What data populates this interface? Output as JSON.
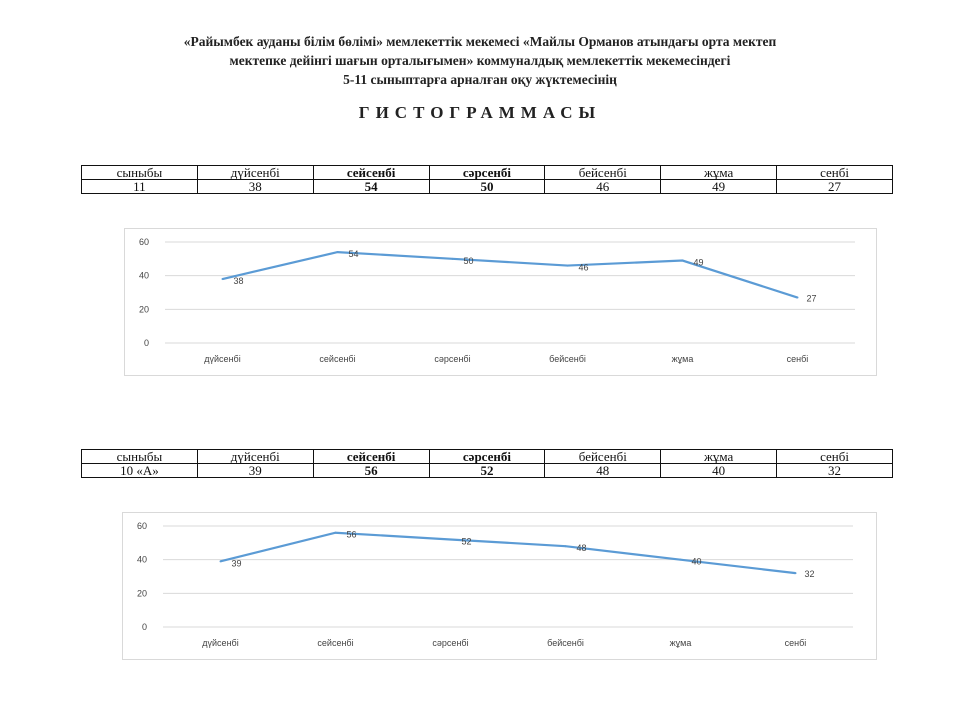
{
  "header": {
    "line1": "«Райымбек ауданы білім бөлімі» мемлекеттік мекемесі «Майлы Орманов атындағы орта мектеп",
    "line2": "мектепке дейінгі шағын орталығымен» коммуналдық мемлекеттік мекемесіндегі",
    "line3": "5-11 сыныптарға арналған оқу жүктемесінің",
    "title": "ГИСТОГРАММАСЫ"
  },
  "tables": [
    {
      "headers": [
        "сыныбы",
        "дүйсенбі",
        "сейсенбі",
        "сәрсенбі",
        "бейсенбі",
        "жұма",
        "сенбі"
      ],
      "row": [
        "11",
        "38",
        "54",
        "50",
        "46",
        "49",
        "27"
      ]
    },
    {
      "headers": [
        "сыныбы",
        "дүйсенбі",
        "сейсенбі",
        "сәрсенбі",
        "бейсенбі",
        "жұма",
        "сенбі"
      ],
      "row": [
        "10 «А»",
        "39",
        "56",
        "52",
        "48",
        "40",
        "32"
      ]
    }
  ],
  "chart_data": [
    {
      "type": "line",
      "categories": [
        "дүйсенбі",
        "сейсенбі",
        "сәрсенбі",
        "бейсенбі",
        "жұма",
        "сенбі"
      ],
      "values": [
        38,
        54,
        50,
        46,
        49,
        27
      ],
      "ylim": [
        0,
        60
      ],
      "yticks": [
        0,
        20,
        40,
        60
      ],
      "grid": true,
      "data_labels": true,
      "color": "#5b9bd5"
    },
    {
      "type": "line",
      "categories": [
        "дүйсенбі",
        "сейсенбі",
        "сәрсенбі",
        "бейсенбі",
        "жұма",
        "сенбі"
      ],
      "values": [
        39,
        56,
        52,
        48,
        40,
        32
      ],
      "ylim": [
        0,
        60
      ],
      "yticks": [
        0,
        20,
        40,
        60
      ],
      "grid": true,
      "data_labels": true,
      "color": "#5b9bd5"
    }
  ]
}
